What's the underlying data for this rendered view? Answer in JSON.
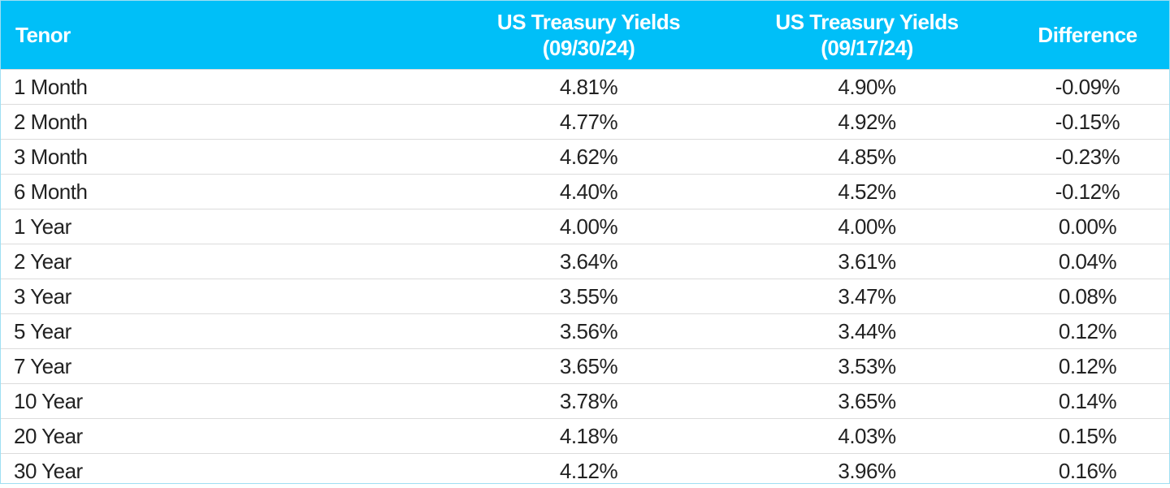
{
  "table": {
    "header": [
      [
        "Tenor"
      ],
      [
        "US Treasury Yields",
        "(09/30/24)"
      ],
      [
        "US Treasury Yields",
        "(09/17/24)"
      ],
      [
        "Difference"
      ]
    ],
    "rows": [
      [
        "1 Month",
        "4.81%",
        "4.90%",
        "-0.09%"
      ],
      [
        "2 Month",
        "4.77%",
        "4.92%",
        "-0.15%"
      ],
      [
        "3 Month",
        "4.62%",
        "4.85%",
        "-0.23%"
      ],
      [
        "6 Month",
        "4.40%",
        "4.52%",
        "-0.12%"
      ],
      [
        "1 Year",
        "4.00%",
        "4.00%",
        "0.00%"
      ],
      [
        "2 Year",
        "3.64%",
        "3.61%",
        "0.04%"
      ],
      [
        "3 Year",
        "3.55%",
        "3.47%",
        "0.08%"
      ],
      [
        "5 Year",
        "3.56%",
        "3.44%",
        "0.12%"
      ],
      [
        "7 Year",
        "3.65%",
        "3.53%",
        "0.12%"
      ],
      [
        "10 Year",
        "3.78%",
        "3.65%",
        "0.14%"
      ],
      [
        "20 Year",
        "4.18%",
        "4.03%",
        "0.15%"
      ],
      [
        "30 Year",
        "4.12%",
        "3.96%",
        "0.16%"
      ]
    ]
  }
}
